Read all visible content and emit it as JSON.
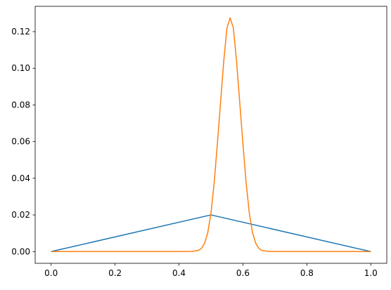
{
  "chart_data": {
    "type": "line",
    "title": "",
    "xlabel": "",
    "ylabel": "",
    "xlim": [
      -0.05,
      1.05
    ],
    "ylim": [
      -0.0064,
      0.1338
    ],
    "grid": false,
    "x_ticks": [
      0.0,
      0.2,
      0.4,
      0.6,
      0.8,
      1.0
    ],
    "x_tick_labels": [
      "0.0",
      "0.2",
      "0.4",
      "0.6",
      "0.8",
      "1.0"
    ],
    "y_ticks": [
      0.0,
      0.02,
      0.04,
      0.06,
      0.08,
      0.1,
      0.12
    ],
    "y_tick_labels": [
      "0.00",
      "0.02",
      "0.04",
      "0.06",
      "0.08",
      "0.10",
      "0.12"
    ],
    "series": [
      {
        "color": "#1f77b4",
        "x": [
          0.0,
          0.5,
          1.0
        ],
        "y": [
          0.0,
          0.02,
          0.0
        ]
      },
      {
        "color": "#ff7f0e",
        "x": [
          0.0,
          0.1,
          0.2,
          0.3,
          0.4,
          0.44,
          0.46,
          0.47,
          0.48,
          0.49,
          0.5,
          0.51,
          0.52,
          0.53,
          0.54,
          0.55,
          0.56,
          0.57,
          0.58,
          0.59,
          0.6,
          0.61,
          0.62,
          0.63,
          0.64,
          0.65,
          0.66,
          0.68,
          0.7,
          0.8,
          0.9,
          1.0
        ],
        "y": [
          0.0,
          0.0,
          0.0,
          0.0,
          0.0,
          0.0001,
          0.0006,
          0.0017,
          0.0045,
          0.0103,
          0.021,
          0.0375,
          0.0588,
          0.0814,
          0.104,
          0.122,
          0.1275,
          0.122,
          0.104,
          0.0814,
          0.0588,
          0.0375,
          0.021,
          0.0103,
          0.0045,
          0.0017,
          0.0006,
          0.0001,
          0.0,
          0.0,
          0.0,
          0.0
        ]
      }
    ]
  }
}
